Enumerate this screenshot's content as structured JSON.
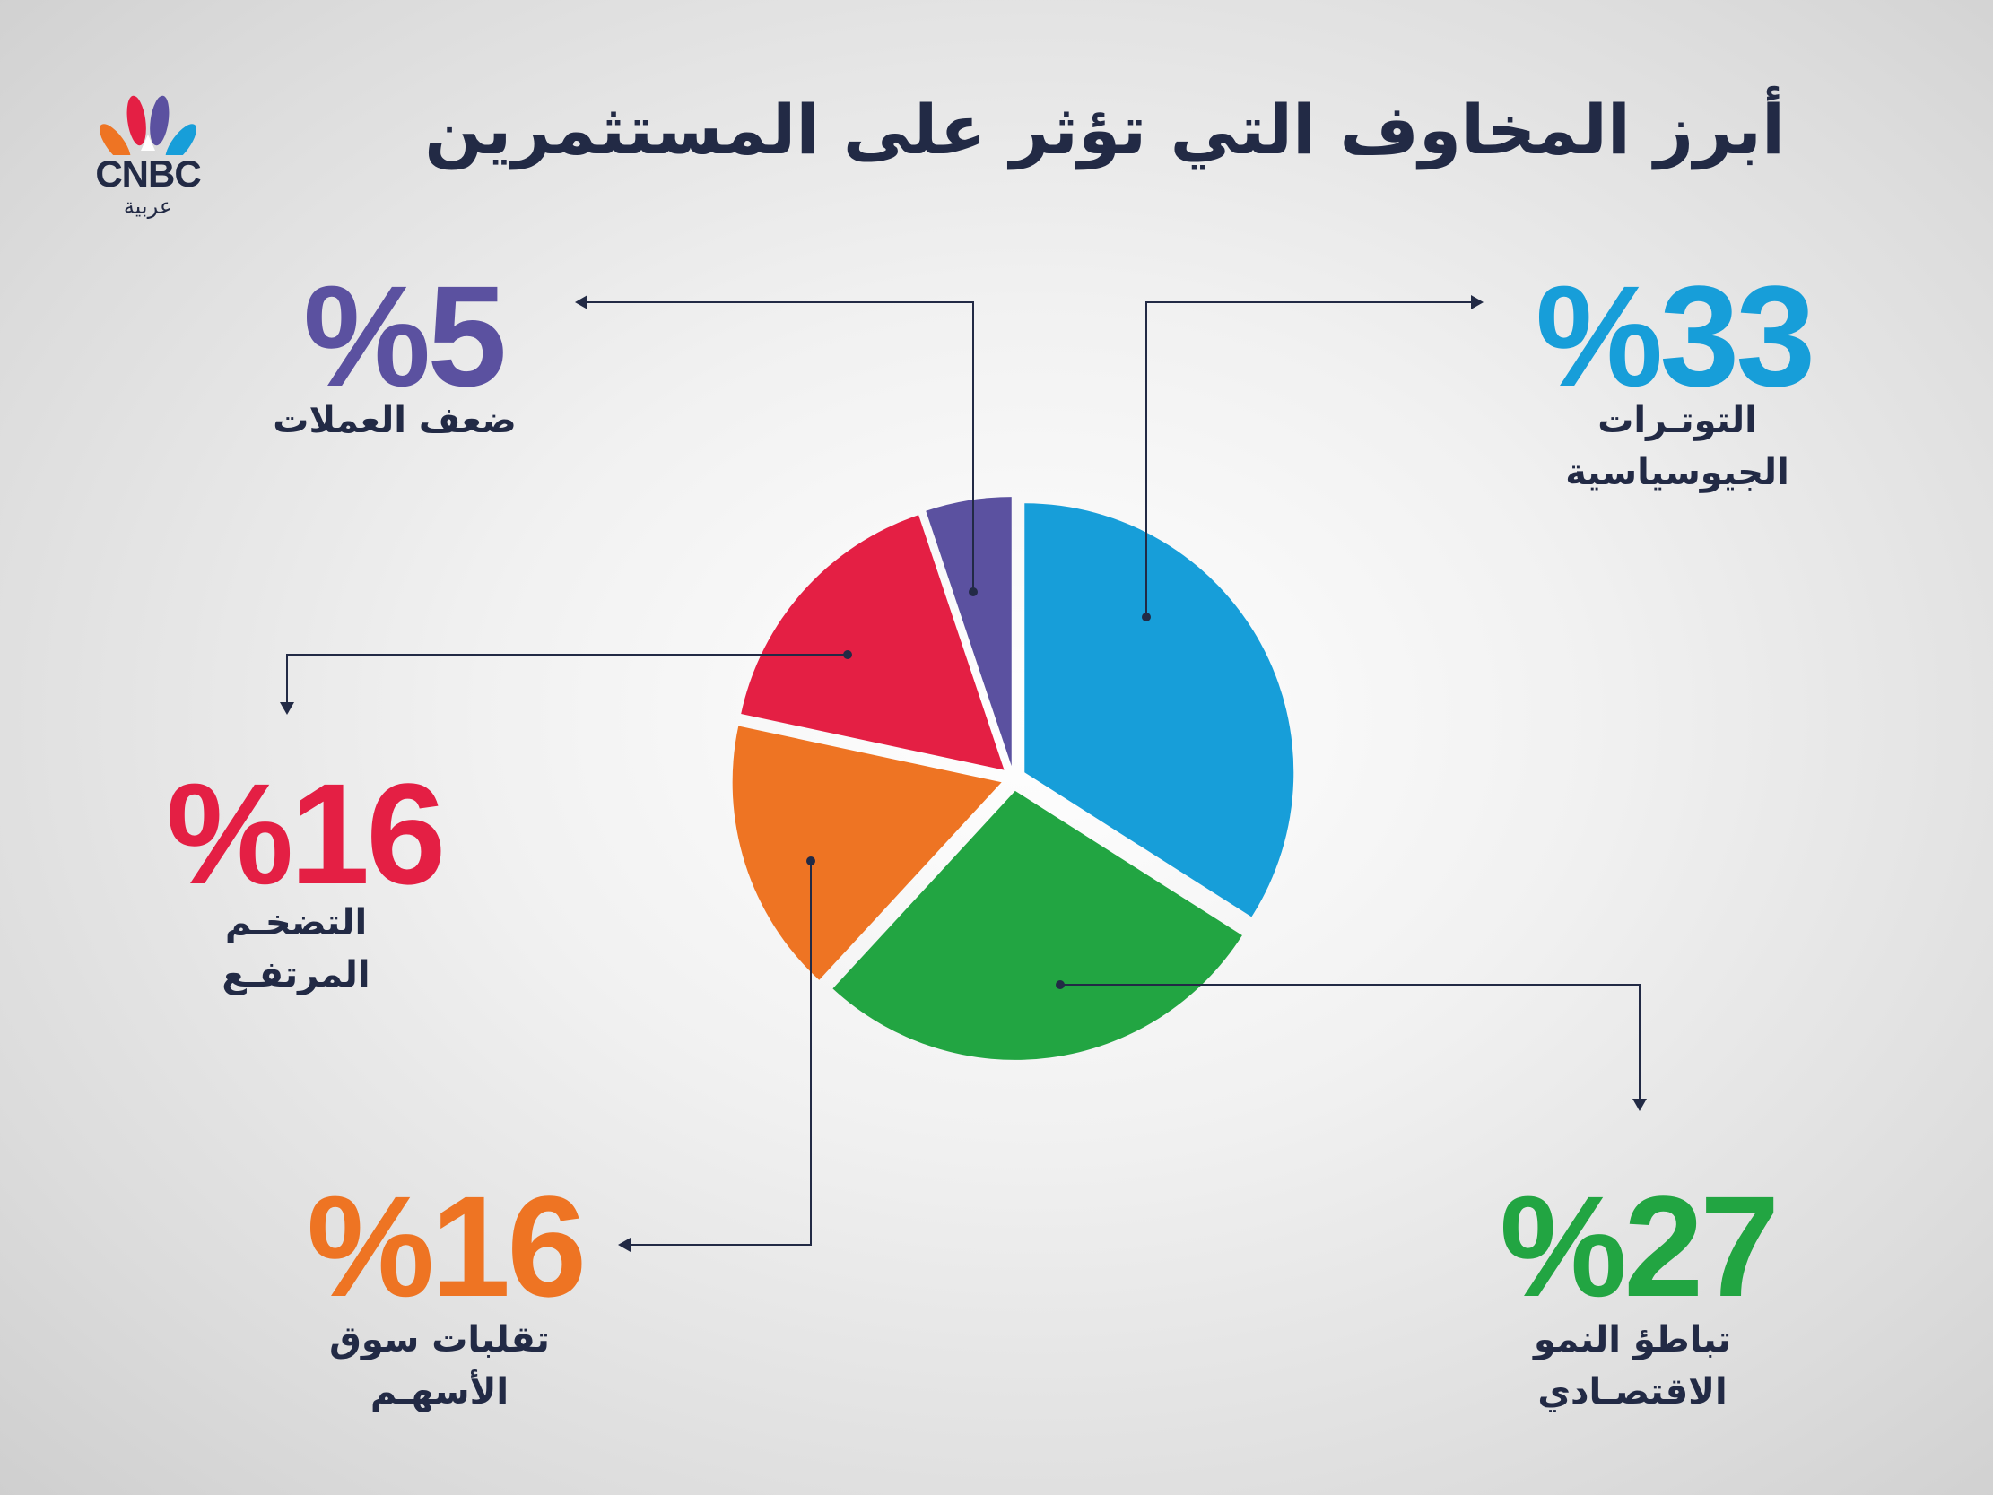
{
  "title": "أبرز المخاوف التي تؤثر على المستثمرين",
  "logo": {
    "word": "CNBC",
    "arabic": "عربية"
  },
  "colors": {
    "ink": "#222a45",
    "blue": "#179ed9",
    "green": "#22a542",
    "orange": "#ee7423",
    "red": "#e41f44",
    "purple": "#5b51a0"
  },
  "chart_data": {
    "type": "pie",
    "slices": [
      {
        "label_line1": "التوتـرات",
        "label_line2": "الجيوسياسية",
        "value": 33,
        "display": "%33",
        "color": "#179ed9"
      },
      {
        "label_line1": "تباطؤ النمو",
        "label_line2": "الاقتصـادي",
        "value": 27,
        "display": "%27",
        "color": "#22a542"
      },
      {
        "label_line1": "تقلبات سوق",
        "label_line2": "الأسهـم",
        "value": 16,
        "display": "%16",
        "color": "#ee7423"
      },
      {
        "label_line1": "التضخـم",
        "label_line2": "المرتفـع",
        "value": 16,
        "display": "%16",
        "color": "#e41f44"
      },
      {
        "label_line1": "ضعف العملات",
        "label_line2": "",
        "value": 5,
        "display": "%5",
        "color": "#5b51a0"
      }
    ]
  }
}
